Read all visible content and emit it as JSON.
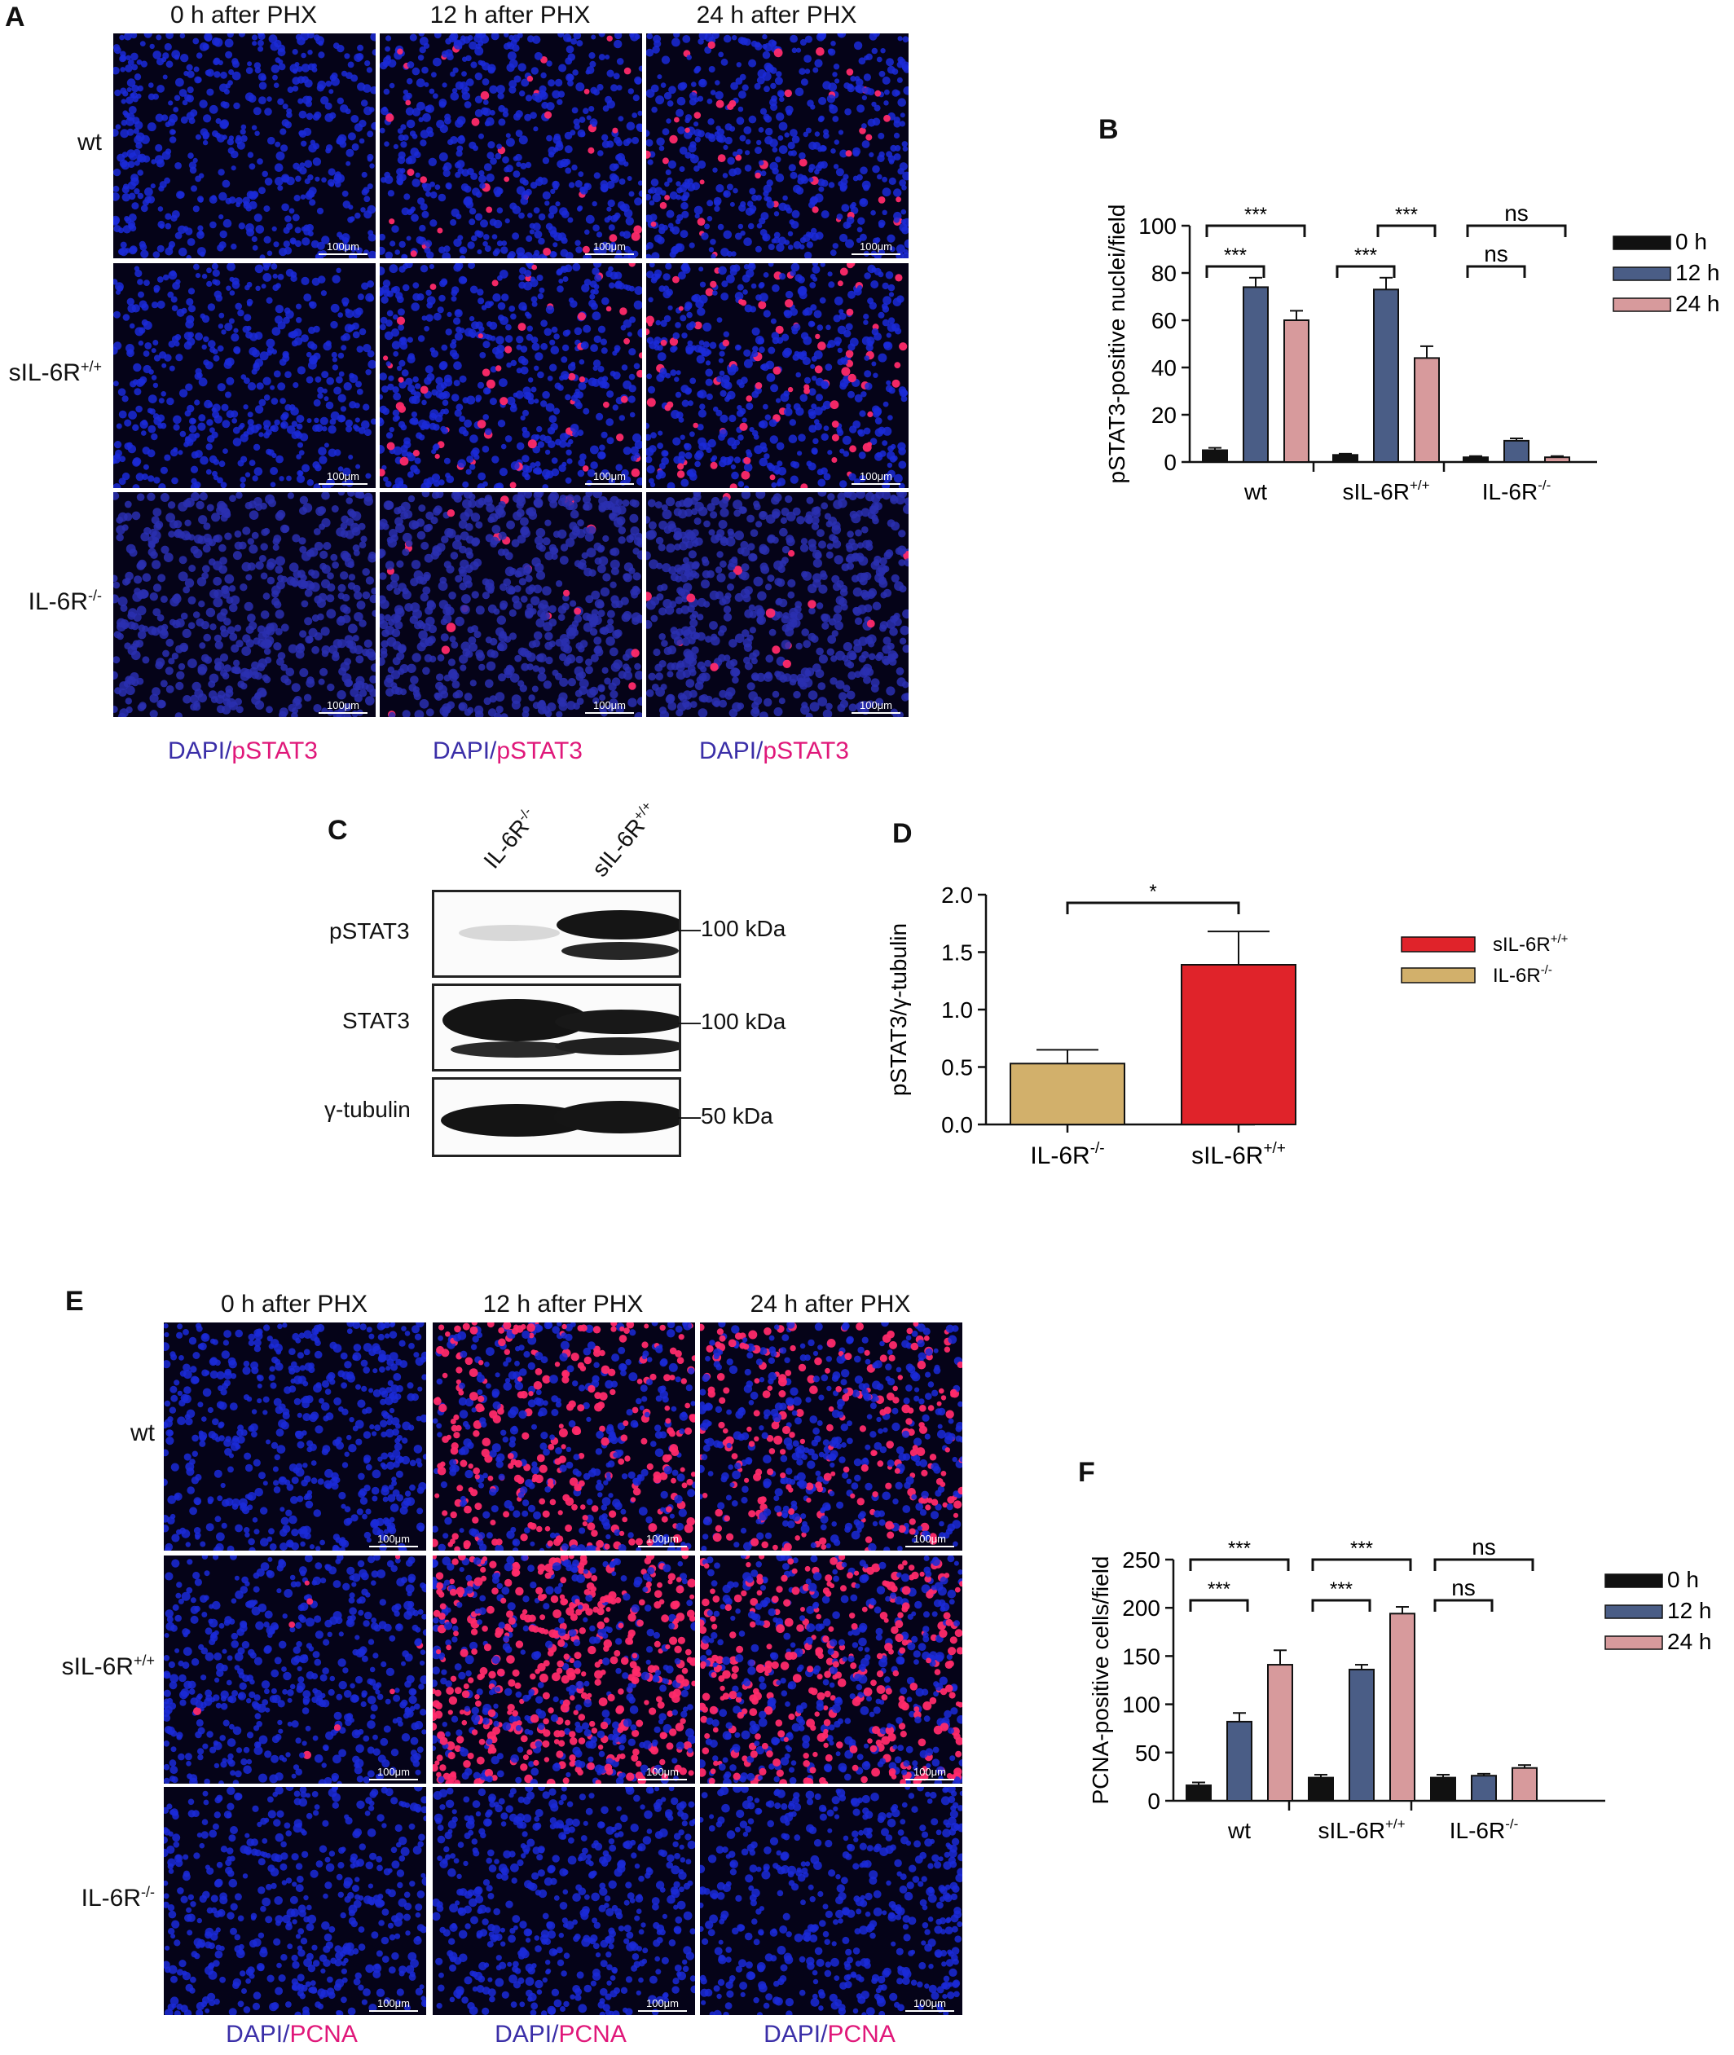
{
  "panels": {
    "A": "A",
    "B": "B",
    "C": "C",
    "D": "D",
    "E": "E",
    "F": "F"
  },
  "micrograph_columns": [
    "0 h after PHX",
    "12 h after PHX",
    "24 h after PHX"
  ],
  "micrograph_rows": [
    "wt",
    "sIL-6R",
    "IL-6R"
  ],
  "row_sup": [
    "",
    "+/+",
    "-/-"
  ],
  "scale_bar": "100μm",
  "stain_A": {
    "dapi": "DAPI",
    "sep": "/",
    "marker": "pSTAT3"
  },
  "stain_E": {
    "dapi": "DAPI",
    "sep": "/",
    "marker": "PCNA"
  },
  "colors": {
    "nuclei": "#1b2ad8",
    "marker": "#ff2a6a",
    "bar_0h": "#111111",
    "bar_12h": "#4a5d86",
    "bar_24h": "#d79a9c",
    "bar_ko": "#d2b06b",
    "bar_sil": "#e0232a"
  },
  "western": {
    "lanes": [
      {
        "name": "IL-6R",
        "sup": "-/-"
      },
      {
        "name": "sIL-6R",
        "sup": "+/+"
      }
    ],
    "rows": [
      {
        "label": "pSTAT3",
        "kda": "100 kDa"
      },
      {
        "label": "STAT3",
        "kda": "100 kDa"
      },
      {
        "label": "γ-tubulin",
        "kda": "50 kDa"
      }
    ]
  },
  "chart_data": [
    {
      "panel": "B",
      "type": "bar",
      "ylabel": "pSTAT3-positive nuclei/field",
      "ylim": [
        0,
        100
      ],
      "yticks": [
        "0",
        "20",
        "40",
        "60",
        "80",
        "100"
      ],
      "groups": [
        {
          "name": "wt",
          "sup": ""
        },
        {
          "name": "sIL-6R",
          "sup": "+/+"
        },
        {
          "name": "IL-6R",
          "sup": "-/-"
        }
      ],
      "series": [
        {
          "name": "0 h",
          "values": [
            5,
            3,
            2
          ],
          "errors": [
            1,
            0.5,
            0.5
          ]
        },
        {
          "name": "12 h",
          "values": [
            74,
            73,
            9
          ],
          "errors": [
            4,
            5,
            1
          ]
        },
        {
          "name": "24 h",
          "values": [
            60,
            44,
            2
          ],
          "errors": [
            4,
            5,
            0.5
          ]
        }
      ],
      "significance": [
        {
          "group": 0,
          "from": 0,
          "to": 1,
          "label": "***"
        },
        {
          "group": 0,
          "from": 0,
          "to": 2,
          "label": "***"
        },
        {
          "group": 1,
          "from": 0,
          "to": 1,
          "label": "***"
        },
        {
          "group": 1,
          "from": 1,
          "to": 2,
          "label": "***"
        },
        {
          "group": 2,
          "from": 0,
          "to": 1,
          "label": "ns"
        },
        {
          "group": 2,
          "from": 0,
          "to": 2,
          "label": "ns"
        }
      ],
      "legend": "right"
    },
    {
      "panel": "D",
      "type": "bar",
      "ylabel": "pSTAT3/γ-tubulin",
      "ylim": [
        0,
        2.0
      ],
      "yticks": [
        "0.0",
        "0.5",
        "1.0",
        "1.5",
        "2.0"
      ],
      "categories": [
        {
          "name": "IL-6R",
          "sup": "-/-"
        },
        {
          "name": "sIL-6R",
          "sup": "+/+"
        }
      ],
      "values": [
        0.53,
        1.39
      ],
      "errors": [
        0.12,
        0.29
      ],
      "significance": [
        {
          "from": 0,
          "to": 1,
          "label": "*"
        }
      ],
      "legend_order": [
        1,
        0
      ],
      "legend": "right"
    },
    {
      "panel": "F",
      "type": "bar",
      "ylabel": "PCNA-positive cells/field",
      "ylim": [
        0,
        250
      ],
      "yticks": [
        "0",
        "50",
        "100",
        "150",
        "200",
        "250"
      ],
      "groups": [
        {
          "name": "wt",
          "sup": ""
        },
        {
          "name": "sIL-6R",
          "sup": "+/+"
        },
        {
          "name": "IL-6R",
          "sup": "-/-"
        }
      ],
      "series": [
        {
          "name": "0 h",
          "values": [
            16,
            24,
            24
          ],
          "errors": [
            3,
            3,
            3
          ]
        },
        {
          "name": "12 h",
          "values": [
            82,
            136,
            26
          ],
          "errors": [
            9,
            5,
            2
          ]
        },
        {
          "name": "24 h",
          "values": [
            141,
            194,
            34
          ],
          "errors": [
            15,
            7,
            3
          ]
        }
      ],
      "significance": [
        {
          "group": 0,
          "from": 0,
          "to": 1,
          "label": "***"
        },
        {
          "group": 0,
          "from": 0,
          "to": 2,
          "label": "***"
        },
        {
          "group": 1,
          "from": 0,
          "to": 1,
          "label": "***"
        },
        {
          "group": 1,
          "from": 0,
          "to": 2,
          "label": "***"
        },
        {
          "group": 2,
          "from": 0,
          "to": 1,
          "label": "ns"
        },
        {
          "group": 2,
          "from": 0,
          "to": 2,
          "label": "ns"
        }
      ],
      "legend": "right"
    }
  ]
}
